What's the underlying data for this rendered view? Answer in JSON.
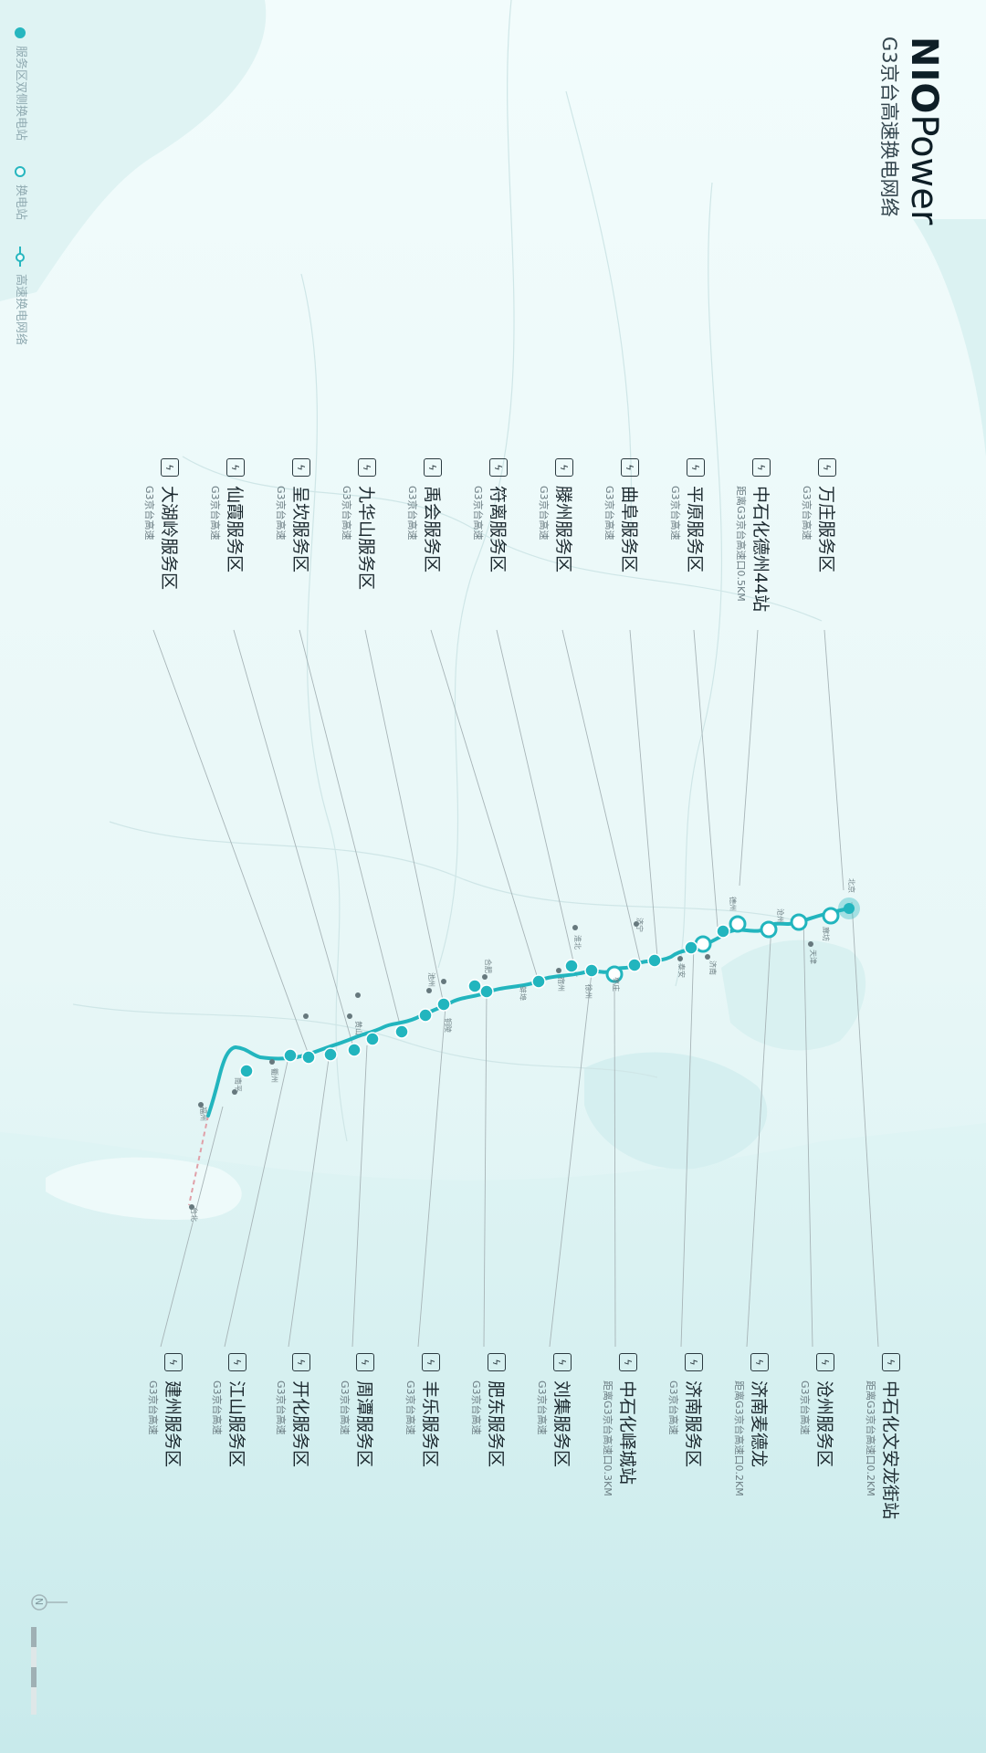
{
  "brand": {
    "strong": "NIO",
    "light": "Power"
  },
  "subtitle": "G3京台高速换电网络",
  "legend": [
    {
      "label": "服务区双侧换电站",
      "icon": "filled-dot-icon"
    },
    {
      "label": "换电站",
      "icon": "ring-dot-icon"
    },
    {
      "label": "高速换电网络",
      "icon": "network-line-icon"
    }
  ],
  "compass_label": "N",
  "colors": {
    "route": "#22b5be",
    "land": "#f3fcfc",
    "sea": "#d3eff0",
    "text": "#1d2a30",
    "leader": "#9aa8ab"
  },
  "stations_top": [
    {
      "name": "万庄服务区",
      "sub": "G3京台高速"
    },
    {
      "name": "中石化德州44站",
      "sub": "距离G3京台高速口0.5KM"
    },
    {
      "name": "平原服务区",
      "sub": "G3京台高速"
    },
    {
      "name": "曲阜服务区",
      "sub": "G3京台高速"
    },
    {
      "name": "滕州服务区",
      "sub": "G3京台高速"
    },
    {
      "name": "符离服务区",
      "sub": "G3京台高速"
    },
    {
      "name": "禹会服务区",
      "sub": "G3京台高速"
    },
    {
      "name": "九华山服务区",
      "sub": "G3京台高速"
    },
    {
      "name": "呈坎服务区",
      "sub": "G3京台高速"
    },
    {
      "name": "仙霞服务区",
      "sub": "G3京台高速"
    },
    {
      "name": "大湖岭服务区",
      "sub": "G3京台高速"
    }
  ],
  "stations_bottom": [
    {
      "name": "中石化文安龙街站",
      "sub": "距离G3京台高速口0.2KM"
    },
    {
      "name": "沧州服务区",
      "sub": "G3京台高速"
    },
    {
      "name": "济南麦德龙",
      "sub": "距离G3京台高速口0.2KM"
    },
    {
      "name": "济南服务区",
      "sub": "G3京台高速"
    },
    {
      "name": "中石化峄城站",
      "sub": "距离G3京台高速口0.3KM"
    },
    {
      "name": "刘集服务区",
      "sub": "G3京台高速"
    },
    {
      "name": "肥东服务区",
      "sub": "G3京台高速"
    },
    {
      "name": "丰乐服务区",
      "sub": "G3京台高速"
    },
    {
      "name": "周潭服务区",
      "sub": "G3京台高速"
    },
    {
      "name": "开化服务区",
      "sub": "G3京台高速"
    },
    {
      "name": "江山服务区",
      "sub": "G3京台高速"
    },
    {
      "name": "建州服务区",
      "sub": "G3京台高速"
    }
  ],
  "cities": [
    "北京",
    "廊坊",
    "天津",
    "沧州",
    "德州",
    "济南",
    "泰安",
    "济宁",
    "枣庄",
    "徐州",
    "淮北",
    "宿州",
    "蚌埠",
    "合肥",
    "铜陵",
    "池州",
    "黄山",
    "衢州",
    "南平",
    "福州",
    "台北"
  ]
}
